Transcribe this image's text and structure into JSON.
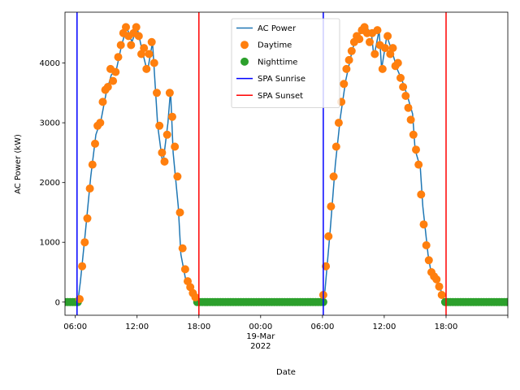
{
  "chart_data": {
    "type": "line",
    "xlabel": "Date",
    "ylabel": "AC Power (kW)",
    "xlim": [
      "2022-03-18T05:00",
      "2022-03-20T00:00"
    ],
    "ylim": [
      -220,
      4850
    ],
    "yticks": [
      0,
      1000,
      2000,
      3000,
      4000
    ],
    "xticks": [
      {
        "t": "2022-03-18T06:00",
        "label": "06:00"
      },
      {
        "t": "2022-03-18T12:00",
        "label": "12:00"
      },
      {
        "t": "2022-03-18T18:00",
        "label": "18:00"
      },
      {
        "t": "2022-03-19T00:00",
        "label": "00:00",
        "sublabels": [
          "19-Mar",
          "2022"
        ]
      },
      {
        "t": "2022-03-19T06:00",
        "label": "06:00"
      },
      {
        "t": "2022-03-19T12:00",
        "label": "12:00"
      },
      {
        "t": "2022-03-19T18:00",
        "label": "18:00"
      },
      {
        "t": "2022-03-20T00:00",
        "label": ""
      }
    ],
    "colors": {
      "ac_power": "#1f77b4",
      "daytime": "#ff7f0e",
      "nighttime": "#2ca02c",
      "sunrise": "#0000ff",
      "sunset": "#ff0000"
    },
    "legend": {
      "placement": "top-center",
      "entries": [
        "AC Power",
        "Daytime",
        "Nighttime",
        "SPA Sunrise",
        "SPA Sunset"
      ]
    },
    "series": [
      {
        "name": "AC Power",
        "points": [
          [
            "2022-03-18T05:00",
            0
          ],
          [
            "2022-03-18T06:00",
            0
          ],
          [
            "2022-03-18T06:15",
            0
          ],
          [
            "2022-03-18T06:30",
            350
          ],
          [
            "2022-03-18T07:00",
            1200
          ],
          [
            "2022-03-18T07:30",
            2100
          ],
          [
            "2022-03-18T08:00",
            2800
          ],
          [
            "2022-03-18T08:30",
            3050
          ],
          [
            "2022-03-18T09:00",
            3500
          ],
          [
            "2022-03-18T09:30",
            3800
          ],
          [
            "2022-03-18T10:00",
            3900
          ],
          [
            "2022-03-18T10:30",
            4300
          ],
          [
            "2022-03-18T11:00",
            4600
          ],
          [
            "2022-03-18T11:30",
            4350
          ],
          [
            "2022-03-18T12:00",
            4600
          ],
          [
            "2022-03-18T12:30",
            4200
          ],
          [
            "2022-03-18T13:00",
            3850
          ],
          [
            "2022-03-18T13:30",
            4350
          ],
          [
            "2022-03-18T14:00",
            2950
          ],
          [
            "2022-03-18T14:30",
            2300
          ],
          [
            "2022-03-18T15:00",
            3000
          ],
          [
            "2022-03-18T15:15",
            3550
          ],
          [
            "2022-03-18T15:30",
            2500
          ],
          [
            "2022-03-18T16:00",
            1600
          ],
          [
            "2022-03-18T16:15",
            800
          ],
          [
            "2022-03-18T16:45",
            350
          ],
          [
            "2022-03-18T17:15",
            150
          ],
          [
            "2022-03-18T17:45",
            30
          ],
          [
            "2022-03-18T18:00",
            0
          ],
          [
            "2022-03-19T06:00",
            0
          ],
          [
            "2022-03-19T06:15",
            200
          ],
          [
            "2022-03-19T06:45",
            1200
          ],
          [
            "2022-03-19T07:15",
            2300
          ],
          [
            "2022-03-19T07:45",
            3100
          ],
          [
            "2022-03-19T08:15",
            3700
          ],
          [
            "2022-03-19T08:45",
            4100
          ],
          [
            "2022-03-19T09:15",
            4450
          ],
          [
            "2022-03-19T09:45",
            4500
          ],
          [
            "2022-03-19T10:15",
            4600
          ],
          [
            "2022-03-19T10:45",
            4500
          ],
          [
            "2022-03-19T11:00",
            4100
          ],
          [
            "2022-03-19T11:30",
            4550
          ],
          [
            "2022-03-19T11:45",
            3900
          ],
          [
            "2022-03-19T12:15",
            4450
          ],
          [
            "2022-03-19T12:45",
            4200
          ],
          [
            "2022-03-19T13:15",
            3900
          ],
          [
            "2022-03-19T13:45",
            3700
          ],
          [
            "2022-03-19T14:15",
            3450
          ],
          [
            "2022-03-19T14:45",
            3150
          ],
          [
            "2022-03-19T15:00",
            2550
          ],
          [
            "2022-03-19T15:30",
            2250
          ],
          [
            "2022-03-19T15:45",
            1600
          ],
          [
            "2022-03-19T16:00",
            1200
          ],
          [
            "2022-03-19T16:15",
            800
          ],
          [
            "2022-03-19T16:30",
            550
          ],
          [
            "2022-03-19T17:00",
            400
          ],
          [
            "2022-03-19T17:30",
            200
          ],
          [
            "2022-03-19T17:45",
            50
          ],
          [
            "2022-03-19T18:00",
            0
          ],
          [
            "2022-03-20T00:00",
            0
          ]
        ]
      },
      {
        "name": "Daytime",
        "points": [
          [
            "2022-03-18T06:25",
            50
          ],
          [
            "2022-03-18T06:40",
            600
          ],
          [
            "2022-03-18T06:55",
            1000
          ],
          [
            "2022-03-18T07:10",
            1400
          ],
          [
            "2022-03-18T07:25",
            1900
          ],
          [
            "2022-03-18T07:40",
            2300
          ],
          [
            "2022-03-18T07:55",
            2650
          ],
          [
            "2022-03-18T08:10",
            2950
          ],
          [
            "2022-03-18T08:25",
            3000
          ],
          [
            "2022-03-18T08:40",
            3350
          ],
          [
            "2022-03-18T08:55",
            3550
          ],
          [
            "2022-03-18T09:10",
            3600
          ],
          [
            "2022-03-18T09:25",
            3900
          ],
          [
            "2022-03-18T09:40",
            3700
          ],
          [
            "2022-03-18T09:55",
            3850
          ],
          [
            "2022-03-18T10:10",
            4100
          ],
          [
            "2022-03-18T10:25",
            4300
          ],
          [
            "2022-03-18T10:40",
            4500
          ],
          [
            "2022-03-18T10:55",
            4600
          ],
          [
            "2022-03-18T11:10",
            4450
          ],
          [
            "2022-03-18T11:25",
            4300
          ],
          [
            "2022-03-18T11:40",
            4500
          ],
          [
            "2022-03-18T11:55",
            4600
          ],
          [
            "2022-03-18T12:10",
            4450
          ],
          [
            "2022-03-18T12:25",
            4150
          ],
          [
            "2022-03-18T12:40",
            4250
          ],
          [
            "2022-03-18T12:55",
            3900
          ],
          [
            "2022-03-18T13:10",
            4150
          ],
          [
            "2022-03-18T13:25",
            4350
          ],
          [
            "2022-03-18T13:40",
            4000
          ],
          [
            "2022-03-18T13:55",
            3500
          ],
          [
            "2022-03-18T14:10",
            2950
          ],
          [
            "2022-03-18T14:25",
            2500
          ],
          [
            "2022-03-18T14:40",
            2350
          ],
          [
            "2022-03-18T14:55",
            2800
          ],
          [
            "2022-03-18T15:10",
            3500
          ],
          [
            "2022-03-18T15:25",
            3100
          ],
          [
            "2022-03-18T15:40",
            2600
          ],
          [
            "2022-03-18T15:55",
            2100
          ],
          [
            "2022-03-18T16:10",
            1500
          ],
          [
            "2022-03-18T16:25",
            900
          ],
          [
            "2022-03-18T16:40",
            550
          ],
          [
            "2022-03-18T16:55",
            350
          ],
          [
            "2022-03-18T17:10",
            250
          ],
          [
            "2022-03-18T17:25",
            150
          ],
          [
            "2022-03-18T17:40",
            80
          ],
          [
            "2022-03-19T06:05",
            120
          ],
          [
            "2022-03-19T06:20",
            600
          ],
          [
            "2022-03-19T06:35",
            1100
          ],
          [
            "2022-03-19T06:50",
            1600
          ],
          [
            "2022-03-19T07:05",
            2100
          ],
          [
            "2022-03-19T07:20",
            2600
          ],
          [
            "2022-03-19T07:35",
            3000
          ],
          [
            "2022-03-19T07:50",
            3350
          ],
          [
            "2022-03-19T08:05",
            3650
          ],
          [
            "2022-03-19T08:20",
            3900
          ],
          [
            "2022-03-19T08:35",
            4050
          ],
          [
            "2022-03-19T08:50",
            4200
          ],
          [
            "2022-03-19T09:05",
            4350
          ],
          [
            "2022-03-19T09:20",
            4450
          ],
          [
            "2022-03-19T09:35",
            4400
          ],
          [
            "2022-03-19T09:50",
            4550
          ],
          [
            "2022-03-19T10:05",
            4600
          ],
          [
            "2022-03-19T10:20",
            4500
          ],
          [
            "2022-03-19T10:35",
            4350
          ],
          [
            "2022-03-19T10:50",
            4500
          ],
          [
            "2022-03-19T11:05",
            4150
          ],
          [
            "2022-03-19T11:20",
            4550
          ],
          [
            "2022-03-19T11:35",
            4300
          ],
          [
            "2022-03-19T11:50",
            3900
          ],
          [
            "2022-03-19T12:05",
            4250
          ],
          [
            "2022-03-19T12:20",
            4450
          ],
          [
            "2022-03-19T12:35",
            4150
          ],
          [
            "2022-03-19T12:50",
            4250
          ],
          [
            "2022-03-19T13:05",
            3950
          ],
          [
            "2022-03-19T13:20",
            4000
          ],
          [
            "2022-03-19T13:35",
            3750
          ],
          [
            "2022-03-19T13:50",
            3600
          ],
          [
            "2022-03-19T14:05",
            3450
          ],
          [
            "2022-03-19T14:20",
            3250
          ],
          [
            "2022-03-19T14:35",
            3050
          ],
          [
            "2022-03-19T14:50",
            2800
          ],
          [
            "2022-03-19T15:05",
            2550
          ],
          [
            "2022-03-19T15:20",
            2300
          ],
          [
            "2022-03-19T15:35",
            1800
          ],
          [
            "2022-03-19T15:50",
            1300
          ],
          [
            "2022-03-19T16:05",
            950
          ],
          [
            "2022-03-19T16:20",
            700
          ],
          [
            "2022-03-19T16:35",
            500
          ],
          [
            "2022-03-19T16:50",
            430
          ],
          [
            "2022-03-19T17:05",
            380
          ],
          [
            "2022-03-19T17:20",
            260
          ],
          [
            "2022-03-19T17:35",
            120
          ]
        ]
      },
      {
        "name": "Nighttime",
        "segments": [
          [
            "2022-03-18T05:00",
            "2022-03-18T06:20"
          ],
          [
            "2022-03-18T17:50",
            "2022-03-19T06:05"
          ],
          [
            "2022-03-19T17:55",
            "2022-03-20T00:00"
          ]
        ],
        "value": 0
      }
    ],
    "vlines": [
      {
        "name": "SPA Sunrise",
        "t": [
          "2022-03-18T06:10",
          "2022-03-19T06:05"
        ]
      },
      {
        "name": "SPA Sunset",
        "t": [
          "2022-03-18T18:00",
          "2022-03-19T18:00"
        ]
      }
    ]
  }
}
